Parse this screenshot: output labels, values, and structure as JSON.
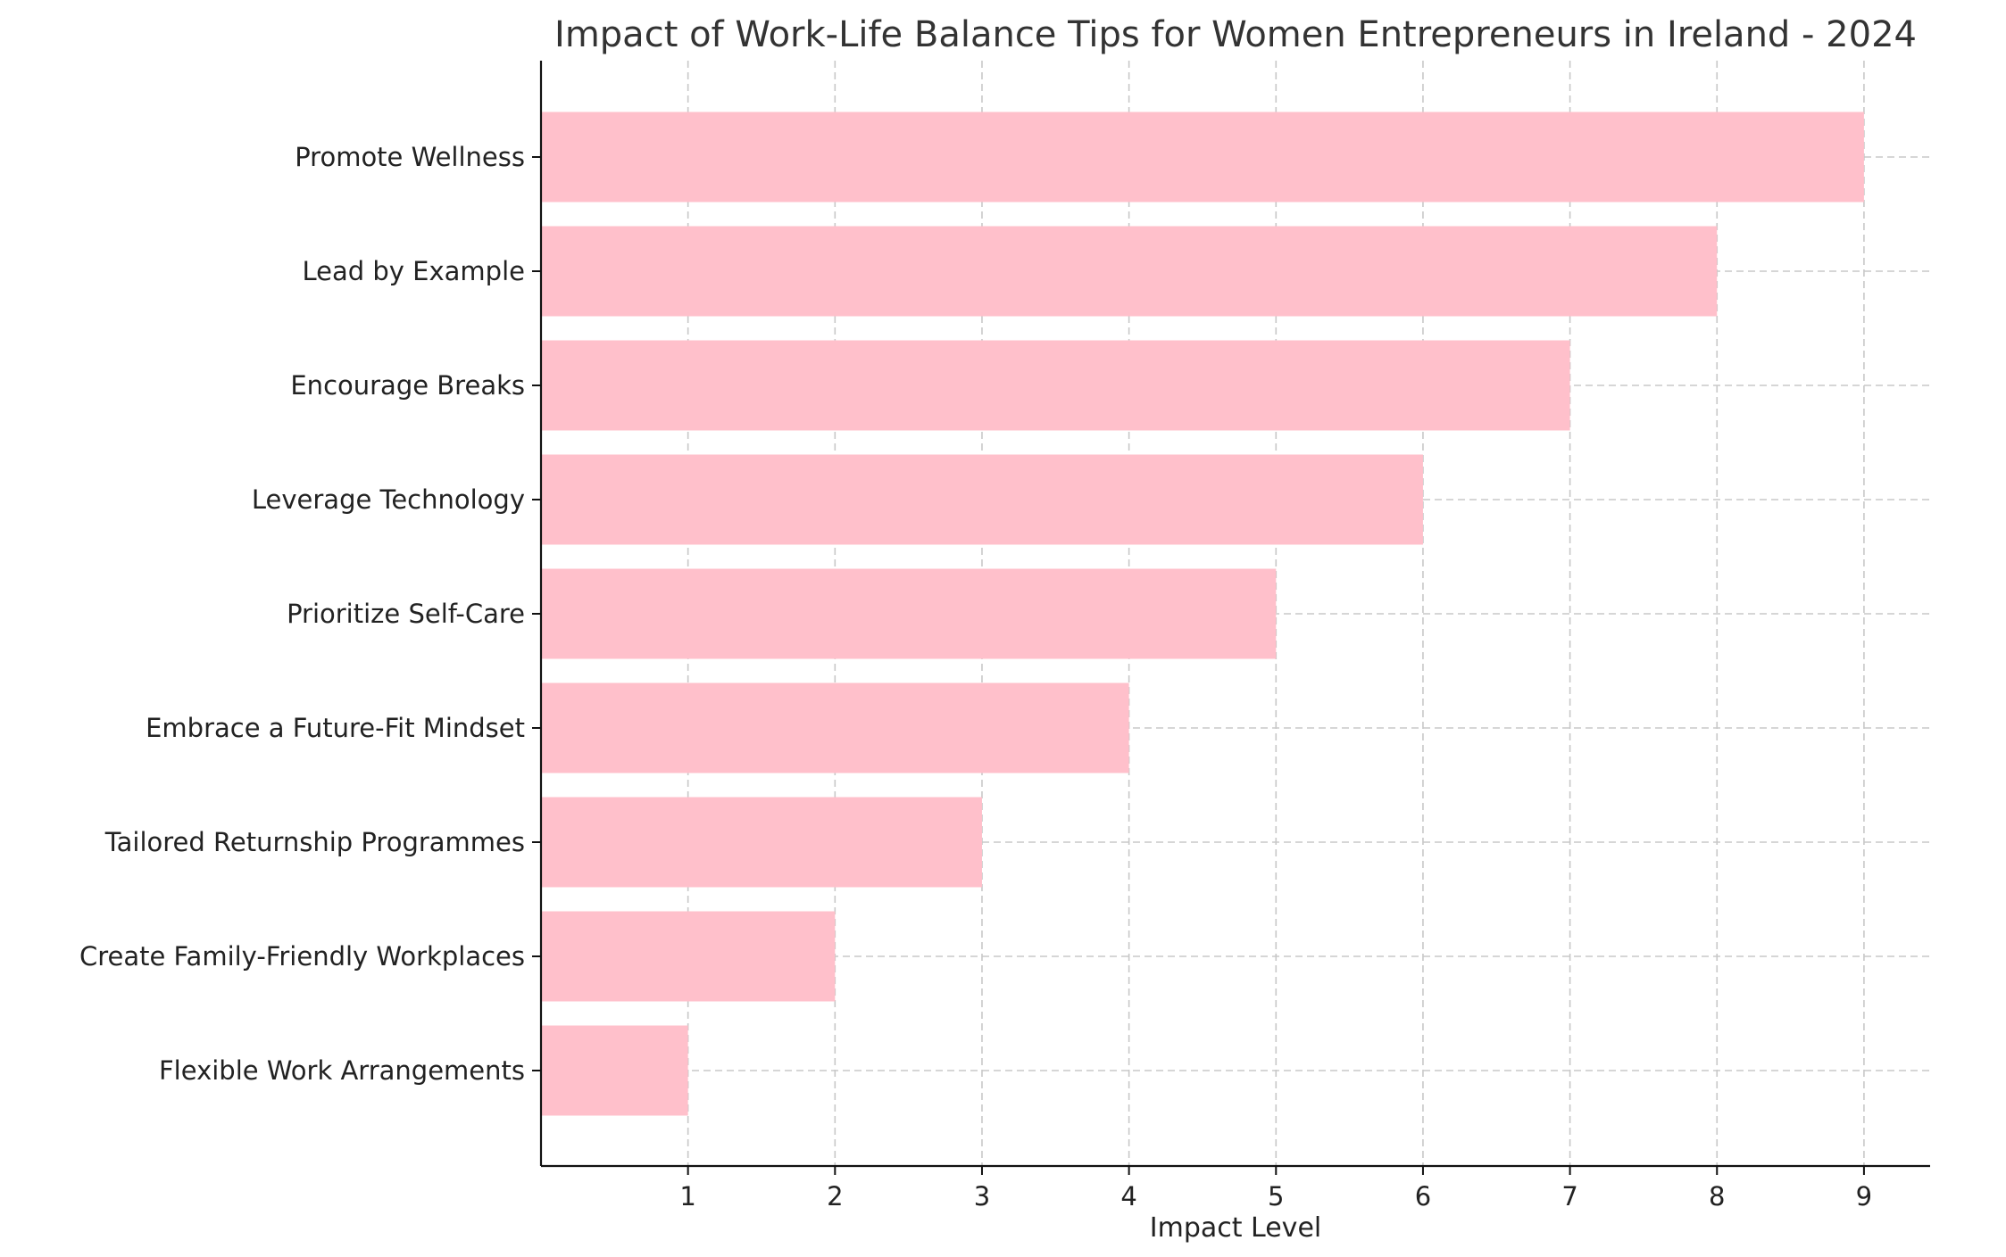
{
  "chart_data": {
    "type": "bar",
    "orientation": "horizontal",
    "title": "Impact of Work-Life Balance Tips for Women Entrepreneurs in Ireland - 2024",
    "xlabel": "Impact Level",
    "ylabel": "",
    "categories": [
      "Flexible Work Arrangements",
      "Create Family-Friendly Workplaces",
      "Tailored Returnship Programmes",
      "Embrace a Future-Fit Mindset",
      "Prioritize Self-Care",
      "Leverage Technology",
      "Encourage Breaks",
      "Lead by Example",
      "Promote Wellness"
    ],
    "values": [
      1,
      2,
      3,
      4,
      5,
      6,
      7,
      8,
      9
    ],
    "xlim": [
      0,
      9.45
    ],
    "xticks": [
      1,
      2,
      3,
      4,
      5,
      6,
      7,
      8,
      9
    ],
    "grid": true,
    "bar_color": "#ffc0cb",
    "legend": "none"
  }
}
